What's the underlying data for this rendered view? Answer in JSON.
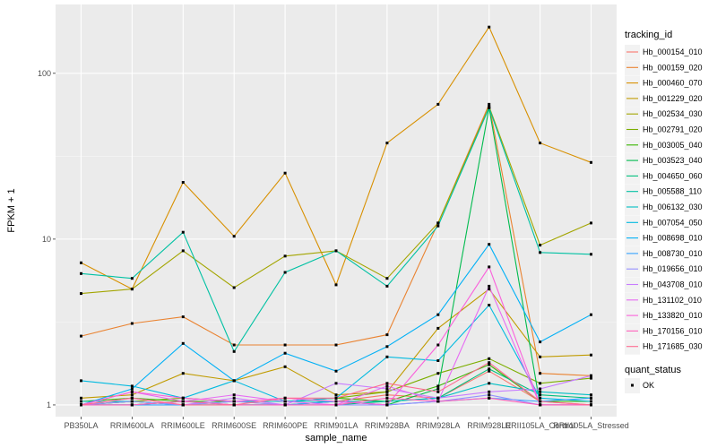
{
  "chart_data": {
    "type": "line",
    "xlabel": "sample_name",
    "ylabel": "FPKM + 1",
    "y_scale": "log10",
    "ylim": [
      0.85,
      260
    ],
    "y_ticks": [
      {
        "value": 1,
        "label": "1"
      },
      {
        "value": 10,
        "label": "10"
      },
      {
        "value": 100,
        "label": "100"
      }
    ],
    "categories": [
      "PB350LA",
      "RRIM600LA",
      "RRIM600LE",
      "RRIM600SE",
      "RRIM600PE",
      "RRIM901LA",
      "RRIM928BA",
      "RRIM928LA",
      "RRIM928LE",
      "RRII105LA_Control",
      "RRII105LA_Stressed"
    ],
    "grid": true,
    "legend_placement": "right",
    "legend_title": "tracking_id",
    "legend2_title": "quant_status",
    "legend2_items": [
      {
        "label": "OK"
      }
    ],
    "series": [
      {
        "name": "Hb_000154_010",
        "color": "#F8766D",
        "values": [
          1.0,
          1.0,
          1.05,
          1.05,
          1.0,
          1.05,
          1.15,
          1.1,
          1.6,
          1.05,
          1.0
        ]
      },
      {
        "name": "Hb_000159_020",
        "color": "#EA8331",
        "values": [
          2.6,
          3.1,
          3.4,
          2.3,
          2.3,
          2.3,
          2.65,
          12.5,
          65,
          1.55,
          1.5
        ]
      },
      {
        "name": "Hb_000460_070",
        "color": "#D89000",
        "values": [
          7.2,
          5.0,
          22,
          10.4,
          25,
          5.3,
          38,
          65,
          190,
          38,
          29
        ]
      },
      {
        "name": "Hb_001229_020",
        "color": "#C09B00",
        "values": [
          1.1,
          1.15,
          1.55,
          1.4,
          1.7,
          1.15,
          1.2,
          2.9,
          5.0,
          1.95,
          2.0
        ]
      },
      {
        "name": "Hb_002534_030",
        "color": "#A3A500",
        "values": [
          4.7,
          5.0,
          8.5,
          5.1,
          7.9,
          8.5,
          5.8,
          12.5,
          63,
          9.2,
          12.5
        ]
      },
      {
        "name": "Hb_002791_020",
        "color": "#7CAE00",
        "values": [
          1.0,
          1.05,
          1.1,
          1.05,
          1.05,
          1.1,
          1.2,
          1.55,
          1.9,
          1.35,
          1.45
        ]
      },
      {
        "name": "Hb_003005_040",
        "color": "#39B600",
        "values": [
          1.05,
          1.1,
          1.05,
          1.05,
          1.05,
          1.1,
          1.05,
          1.3,
          1.75,
          1.05,
          1.05
        ]
      },
      {
        "name": "Hb_003523_040",
        "color": "#00BB4E",
        "values": [
          1.0,
          1.05,
          1.0,
          1.0,
          1.0,
          1.05,
          1.0,
          1.25,
          62,
          1.0,
          1.0
        ]
      },
      {
        "name": "Hb_004650_060",
        "color": "#00BF7D",
        "values": [
          1.0,
          1.0,
          1.05,
          1.0,
          1.0,
          1.0,
          1.05,
          1.1,
          1.65,
          1.15,
          1.1
        ]
      },
      {
        "name": "Hb_005588_110",
        "color": "#00C1A3",
        "values": [
          6.2,
          5.8,
          11,
          2.1,
          6.3,
          8.5,
          5.2,
          12,
          62,
          8.3,
          8.1
        ]
      },
      {
        "name": "Hb_006132_030",
        "color": "#00BFC4",
        "values": [
          1.05,
          1.05,
          1.0,
          1.05,
          1.05,
          1.05,
          1.05,
          1.1,
          1.35,
          1.2,
          1.15
        ]
      },
      {
        "name": "Hb_007054_050",
        "color": "#00BAE0",
        "values": [
          1.4,
          1.3,
          1.1,
          1.4,
          1.05,
          1.1,
          1.95,
          1.85,
          4.0,
          1.1,
          1.05
        ]
      },
      {
        "name": "Hb_008698_010",
        "color": "#00B0F6",
        "values": [
          1.0,
          1.25,
          2.35,
          1.4,
          2.05,
          1.6,
          2.25,
          3.5,
          9.3,
          2.4,
          3.5
        ]
      },
      {
        "name": "Hb_008730_010",
        "color": "#35A2FF",
        "values": [
          1.0,
          1.0,
          1.0,
          1.0,
          1.0,
          1.05,
          1.0,
          1.05,
          1.1,
          1.05,
          1.1
        ]
      },
      {
        "name": "Hb_019656_010",
        "color": "#9590FF",
        "values": [
          1.0,
          1.05,
          1.0,
          1.05,
          1.0,
          1.0,
          1.0,
          1.05,
          1.15,
          1.0,
          1.0
        ]
      },
      {
        "name": "Hb_043708_010",
        "color": "#C77CFF",
        "values": [
          1.0,
          1.1,
          1.0,
          1.1,
          1.0,
          1.35,
          1.25,
          1.1,
          1.2,
          1.25,
          1.5
        ]
      },
      {
        "name": "Hb_131102_010",
        "color": "#E76BF3",
        "values": [
          1.0,
          1.2,
          1.05,
          1.15,
          1.05,
          1.0,
          1.3,
          1.05,
          5.2,
          1.0,
          1.0
        ]
      },
      {
        "name": "Hb_133820_010",
        "color": "#FA62DB",
        "values": [
          1.0,
          1.2,
          1.1,
          1.05,
          1.1,
          1.05,
          1.0,
          2.3,
          6.8,
          1.0,
          1.0
        ]
      },
      {
        "name": "Hb_170156_010",
        "color": "#FF62BC",
        "values": [
          1.0,
          1.0,
          1.05,
          1.0,
          1.0,
          1.0,
          1.1,
          1.05,
          1.1,
          1.0,
          1.0
        ]
      },
      {
        "name": "Hb_171685_030",
        "color": "#FF6C91",
        "values": [
          1.0,
          1.1,
          1.0,
          1.0,
          1.1,
          1.1,
          1.35,
          1.2,
          1.8,
          1.05,
          1.0
        ]
      }
    ]
  }
}
